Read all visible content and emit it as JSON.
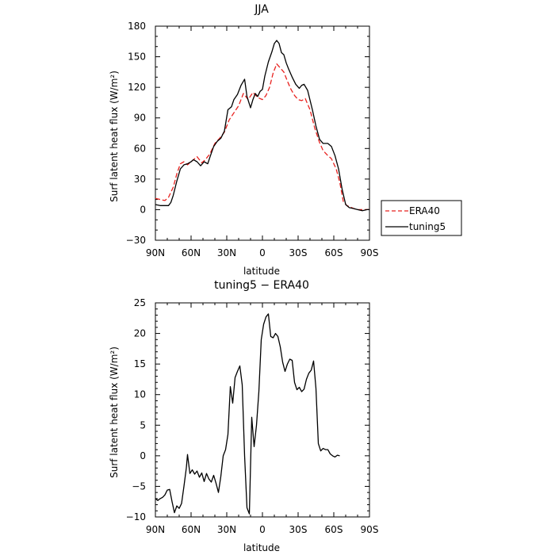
{
  "chart_data": [
    {
      "type": "line",
      "title": "JJA",
      "xlabel": "latitude",
      "ylabel": "Surf latent heat flux (W/m²)",
      "xlim": [
        90,
        -90
      ],
      "ylim": [
        -30,
        180
      ],
      "x_tick_labels": [
        "90N",
        "60N",
        "30N",
        "0",
        "30S",
        "60S",
        "90S"
      ],
      "y_tick_labels": [
        "−30",
        "0",
        "30",
        "60",
        "90",
        "120",
        "150",
        "180"
      ],
      "legend": {
        "placement": "right",
        "entries": [
          "ERA40",
          "tuning5"
        ]
      },
      "series": [
        {
          "name": "ERA40",
          "color": "#e8221f",
          "dash": "dashed",
          "points": [
            [
              90,
              11
            ],
            [
              86,
              10
            ],
            [
              82,
              9
            ],
            [
              79,
              12
            ],
            [
              75,
              22
            ],
            [
              72,
              35
            ],
            [
              69,
              45
            ],
            [
              66,
              47
            ],
            [
              63,
              44
            ],
            [
              60,
              47
            ],
            [
              55,
              52
            ],
            [
              51,
              46
            ],
            [
              48,
              49
            ],
            [
              44,
              55
            ],
            [
              40,
              65
            ],
            [
              36,
              70
            ],
            [
              32,
              76
            ],
            [
              28,
              88
            ],
            [
              24,
              95
            ],
            [
              20,
              102
            ],
            [
              16,
              114
            ],
            [
              12,
              108
            ],
            [
              8,
              115
            ],
            [
              4,
              110
            ],
            [
              0,
              108
            ],
            [
              -3,
              112
            ],
            [
              -6,
              120
            ],
            [
              -9,
              134
            ],
            [
              -12,
              143
            ],
            [
              -15,
              139
            ],
            [
              -18,
              135
            ],
            [
              -21,
              126
            ],
            [
              -24,
              118
            ],
            [
              -27,
              112
            ],
            [
              -30,
              108
            ],
            [
              -33,
              107
            ],
            [
              -36,
              109
            ],
            [
              -40,
              98
            ],
            [
              -44,
              80
            ],
            [
              -48,
              66
            ],
            [
              -51,
              58
            ],
            [
              -55,
              53
            ],
            [
              -58,
              50
            ],
            [
              -62,
              40
            ],
            [
              -65,
              27
            ],
            [
              -68,
              8
            ],
            [
              -71,
              4
            ],
            [
              -75,
              2
            ],
            [
              -79,
              0
            ],
            [
              -83,
              0
            ],
            [
              -87,
              0
            ],
            [
              -90,
              0
            ]
          ]
        },
        {
          "name": "tuning5",
          "color": "#000000",
          "dash": "solid",
          "points": [
            [
              90,
              5
            ],
            [
              86,
              4
            ],
            [
              82,
              4
            ],
            [
              79,
              4
            ],
            [
              77,
              7
            ],
            [
              75,
              14
            ],
            [
              72,
              28
            ],
            [
              69,
              40
            ],
            [
              66,
              44
            ],
            [
              63,
              45
            ],
            [
              60,
              47
            ],
            [
              58,
              49
            ],
            [
              55,
              47
            ],
            [
              52,
              43
            ],
            [
              49,
              47
            ],
            [
              46,
              45
            ],
            [
              44,
              52
            ],
            [
              41,
              62
            ],
            [
              38,
              67
            ],
            [
              35,
              70
            ],
            [
              32,
              77
            ],
            [
              29,
              98
            ],
            [
              26,
              101
            ],
            [
              24,
              108
            ],
            [
              21,
              113
            ],
            [
              18,
              122
            ],
            [
              15,
              128
            ],
            [
              13,
              111
            ],
            [
              10,
              100
            ],
            [
              8,
              108
            ],
            [
              6,
              114
            ],
            [
              4,
              111
            ],
            [
              2,
              116
            ],
            [
              0,
              118
            ],
            [
              -2,
              131
            ],
            [
              -5,
              145
            ],
            [
              -8,
              155
            ],
            [
              -10,
              163
            ],
            [
              -12,
              166
            ],
            [
              -14,
              163
            ],
            [
              -16,
              154
            ],
            [
              -18,
              152
            ],
            [
              -20,
              144
            ],
            [
              -22,
              138
            ],
            [
              -25,
              130
            ],
            [
              -28,
              123
            ],
            [
              -31,
              119
            ],
            [
              -33,
              122
            ],
            [
              -35,
              123
            ],
            [
              -38,
              117
            ],
            [
              -42,
              98
            ],
            [
              -45,
              82
            ],
            [
              -48,
              69
            ],
            [
              -51,
              65
            ],
            [
              -55,
              65
            ],
            [
              -58,
              62
            ],
            [
              -61,
              53
            ],
            [
              -64,
              40
            ],
            [
              -67,
              20
            ],
            [
              -70,
              5
            ],
            [
              -73,
              2
            ],
            [
              -77,
              1
            ],
            [
              -80,
              0
            ],
            [
              -84,
              -1
            ],
            [
              -88,
              0
            ],
            [
              -90,
              0
            ]
          ]
        }
      ]
    },
    {
      "type": "line",
      "title": "tuning5 − ERA40",
      "xlabel": "latitude",
      "ylabel": "Surf latent heat flux (W/m²)",
      "xlim": [
        90,
        -90
      ],
      "ylim": [
        -10,
        25
      ],
      "x_tick_labels": [
        "90N",
        "60N",
        "30N",
        "0",
        "30S",
        "60S",
        "90S"
      ],
      "y_tick_labels": [
        "−10",
        "−5",
        "0",
        "5",
        "10",
        "15",
        "20",
        "25"
      ],
      "series": [
        {
          "color": "#000000",
          "dash": "solid",
          "points": [
            [
              90,
              -7.0
            ],
            [
              88,
              -7.3
            ],
            [
              86,
              -7.0
            ],
            [
              84,
              -6.8
            ],
            [
              82,
              -6.4
            ],
            [
              80,
              -5.6
            ],
            [
              78,
              -5.5
            ],
            [
              76,
              -7.5
            ],
            [
              74,
              -9.3
            ],
            [
              72,
              -8.2
            ],
            [
              70,
              -8.6
            ],
            [
              68,
              -7.8
            ],
            [
              66,
              -5.0
            ],
            [
              64,
              -2.0
            ],
            [
              63,
              0.2
            ],
            [
              61,
              -2.9
            ],
            [
              59,
              -2.3
            ],
            [
              57,
              -3.0
            ],
            [
              55,
              -2.5
            ],
            [
              53,
              -3.5
            ],
            [
              51,
              -2.8
            ],
            [
              49,
              -4.2
            ],
            [
              47,
              -2.9
            ],
            [
              45,
              -3.8
            ],
            [
              43,
              -4.3
            ],
            [
              41,
              -3.2
            ],
            [
              39,
              -4.5
            ],
            [
              37,
              -6.0
            ],
            [
              35,
              -3.4
            ],
            [
              33,
              0.0
            ],
            [
              31,
              1.0
            ],
            [
              29,
              3.5
            ],
            [
              27,
              11.3
            ],
            [
              25,
              8.6
            ],
            [
              23,
              12.8
            ],
            [
              21,
              13.8
            ],
            [
              19,
              14.7
            ],
            [
              17,
              11.6
            ],
            [
              15,
              0.0
            ],
            [
              13,
              -8.5
            ],
            [
              11,
              -9.5
            ],
            [
              9,
              6.3
            ],
            [
              7,
              1.5
            ],
            [
              5,
              5.0
            ],
            [
              3,
              10.5
            ],
            [
              1,
              19.0
            ],
            [
              -1,
              21.5
            ],
            [
              -3,
              22.7
            ],
            [
              -5,
              23.2
            ],
            [
              -7,
              19.5
            ],
            [
              -9,
              19.3
            ],
            [
              -11,
              20.0
            ],
            [
              -13,
              19.5
            ],
            [
              -15,
              17.8
            ],
            [
              -17,
              15.3
            ],
            [
              -19,
              13.8
            ],
            [
              -21,
              15.0
            ],
            [
              -23,
              15.8
            ],
            [
              -25,
              15.6
            ],
            [
              -27,
              12.0
            ],
            [
              -29,
              10.8
            ],
            [
              -31,
              11.2
            ],
            [
              -33,
              10.5
            ],
            [
              -35,
              10.9
            ],
            [
              -37,
              12.5
            ],
            [
              -39,
              13.5
            ],
            [
              -41,
              14.0
            ],
            [
              -43,
              15.5
            ],
            [
              -45,
              11.0
            ],
            [
              -47,
              2.0
            ],
            [
              -49,
              0.8
            ],
            [
              -51,
              1.2
            ],
            [
              -53,
              1.0
            ],
            [
              -55,
              1.0
            ],
            [
              -57,
              0.3
            ],
            [
              -59,
              0.0
            ],
            [
              -61,
              -0.2
            ],
            [
              -63,
              0.1
            ],
            [
              -65,
              0.0
            ]
          ]
        }
      ]
    }
  ]
}
